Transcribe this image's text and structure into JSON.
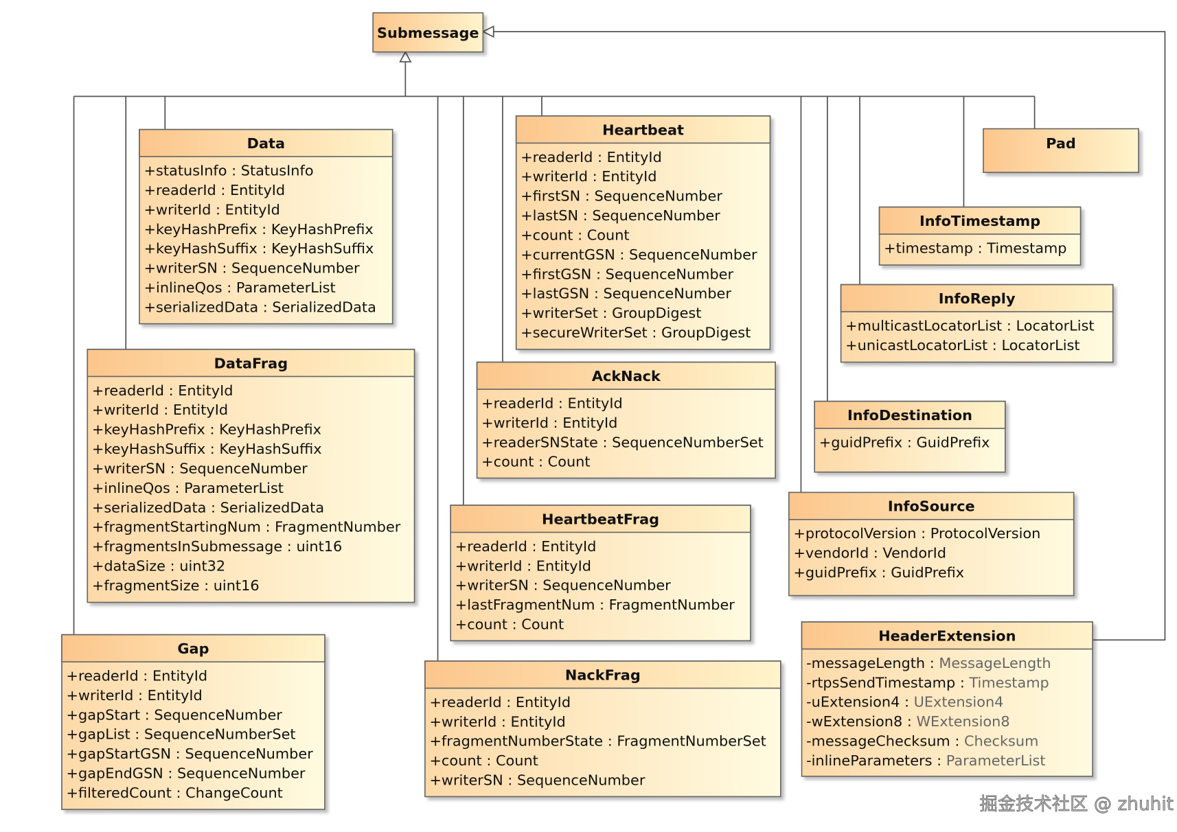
{
  "diagram_type": "uml-class-diagram",
  "colors": {
    "header_left": "#fcc68c",
    "header_right": "#fff4cc",
    "body_left": "#fdd9a8",
    "body_right": "#fffbe0",
    "border": "#666666",
    "line": "#555555"
  },
  "parent": {
    "id": "submessage",
    "name": "Submessage"
  },
  "classes": [
    {
      "id": "data",
      "name": "Data",
      "attributes": [
        {
          "v": "+",
          "n": "statusInfo",
          "t": "StatusInfo"
        },
        {
          "v": "+",
          "n": "readerId",
          "t": "EntityId"
        },
        {
          "v": "+",
          "n": "writerId",
          "t": "EntityId"
        },
        {
          "v": "+",
          "n": "keyHashPrefix",
          "t": "KeyHashPrefix"
        },
        {
          "v": "+",
          "n": "keyHashSuffix",
          "t": "KeyHashSuffix"
        },
        {
          "v": "+",
          "n": "writerSN",
          "t": "SequenceNumber"
        },
        {
          "v": "+",
          "n": "inlineQos",
          "t": "ParameterList"
        },
        {
          "v": "+",
          "n": "serializedData",
          "t": "SerializedData"
        }
      ]
    },
    {
      "id": "datafrag",
      "name": "DataFrag",
      "attributes": [
        {
          "v": "+",
          "n": "readerId",
          "t": "EntityId"
        },
        {
          "v": "+",
          "n": "writerId",
          "t": "EntityId"
        },
        {
          "v": "+",
          "n": "keyHashPrefix",
          "t": "KeyHashPrefix"
        },
        {
          "v": "+",
          "n": "keyHashSuffix",
          "t": "KeyHashSuffix"
        },
        {
          "v": "+",
          "n": "writerSN",
          "t": "SequenceNumber"
        },
        {
          "v": "+",
          "n": "inlineQos",
          "t": "ParameterList"
        },
        {
          "v": "+",
          "n": "serializedData",
          "t": "SerializedData"
        },
        {
          "v": "+",
          "n": "fragmentStartingNum",
          "t": "FragmentNumber"
        },
        {
          "v": "+",
          "n": "fragmentsInSubmessage",
          "t": "uint16"
        },
        {
          "v": "+",
          "n": "dataSize",
          "t": "uint32"
        },
        {
          "v": "+",
          "n": "fragmentSize",
          "t": "uint16"
        }
      ]
    },
    {
      "id": "gap",
      "name": "Gap",
      "attributes": [
        {
          "v": "+",
          "n": "readerId",
          "t": "EntityId"
        },
        {
          "v": "+",
          "n": "writerId",
          "t": "EntityId"
        },
        {
          "v": "+",
          "n": "gapStart",
          "t": "SequenceNumber"
        },
        {
          "v": "+",
          "n": "gapList",
          "t": "SequenceNumberSet"
        },
        {
          "v": "+",
          "n": "gapStartGSN",
          "t": "SequenceNumber"
        },
        {
          "v": "+",
          "n": "gapEndGSN",
          "t": "SequenceNumber"
        },
        {
          "v": "+",
          "n": "filteredCount",
          "t": "ChangeCount"
        }
      ]
    },
    {
      "id": "heartbeat",
      "name": "Heartbeat",
      "attributes": [
        {
          "v": "+",
          "n": "readerId",
          "t": "EntityId"
        },
        {
          "v": "+",
          "n": "writerId",
          "t": "EntityId"
        },
        {
          "v": "+",
          "n": "firstSN",
          "t": "SequenceNumber"
        },
        {
          "v": "+",
          "n": "lastSN",
          "t": "SequenceNumber"
        },
        {
          "v": "+",
          "n": "count",
          "t": "Count"
        },
        {
          "v": "+",
          "n": "currentGSN",
          "t": "SequenceNumber"
        },
        {
          "v": "+",
          "n": "firstGSN",
          "t": "SequenceNumber"
        },
        {
          "v": "+",
          "n": "lastGSN",
          "t": "SequenceNumber"
        },
        {
          "v": "+",
          "n": "writerSet",
          "t": "GroupDigest"
        },
        {
          "v": "+",
          "n": "secureWriterSet",
          "t": "GroupDigest"
        }
      ]
    },
    {
      "id": "acknack",
      "name": "AckNack",
      "attributes": [
        {
          "v": "+",
          "n": "readerId",
          "t": "EntityId"
        },
        {
          "v": "+",
          "n": "writerId",
          "t": "EntityId"
        },
        {
          "v": "+",
          "n": "readerSNState",
          "t": "SequenceNumberSet"
        },
        {
          "v": "+",
          "n": "count",
          "t": "Count"
        }
      ]
    },
    {
      "id": "heartbeatfrag",
      "name": "HeartbeatFrag",
      "attributes": [
        {
          "v": "+",
          "n": "readerId",
          "t": "EntityId"
        },
        {
          "v": "+",
          "n": "writerId",
          "t": "EntityId"
        },
        {
          "v": "+",
          "n": "writerSN",
          "t": "SequenceNumber"
        },
        {
          "v": "+",
          "n": "lastFragmentNum",
          "t": "FragmentNumber"
        },
        {
          "v": "+",
          "n": "count",
          "t": "Count"
        }
      ]
    },
    {
      "id": "nackfrag",
      "name": "NackFrag",
      "attributes": [
        {
          "v": "+",
          "n": "readerId",
          "t": "EntityId"
        },
        {
          "v": "+",
          "n": "writerId",
          "t": "EntityId"
        },
        {
          "v": "+",
          "n": "fragmentNumberState",
          "t": "FragmentNumberSet"
        },
        {
          "v": "+",
          "n": "count",
          "t": "Count"
        },
        {
          "v": "+",
          "n": "writerSN",
          "t": "SequenceNumber"
        }
      ]
    },
    {
      "id": "pad",
      "name": "Pad",
      "attributes": []
    },
    {
      "id": "infotimestamp",
      "name": "InfoTimestamp",
      "attributes": [
        {
          "v": "+",
          "n": "timestamp",
          "t": "Timestamp"
        }
      ]
    },
    {
      "id": "inforeply",
      "name": "InfoReply",
      "attributes": [
        {
          "v": "+",
          "n": "multicastLocatorList",
          "t": "LocatorList"
        },
        {
          "v": "+",
          "n": "unicastLocatorList",
          "t": "LocatorList"
        }
      ]
    },
    {
      "id": "infodestination",
      "name": "InfoDestination",
      "attributes": [
        {
          "v": "+",
          "n": "guidPrefix",
          "t": "GuidPrefix"
        }
      ]
    },
    {
      "id": "infosource",
      "name": "InfoSource",
      "attributes": [
        {
          "v": "+",
          "n": "protocolVersion",
          "t": "ProtocolVersion"
        },
        {
          "v": "+",
          "n": "vendorId",
          "t": "VendorId"
        },
        {
          "v": "+",
          "n": "guidPrefix",
          "t": "GuidPrefix"
        }
      ]
    },
    {
      "id": "headerextension",
      "name": "HeaderExtension",
      "gray_types": true,
      "attributes": [
        {
          "v": "-",
          "n": "messageLength",
          "t": "MessageLength"
        },
        {
          "v": "-",
          "n": "rtpsSendTimestamp",
          "t": "Timestamp"
        },
        {
          "v": "-",
          "n": "uExtension4",
          "t": "UExtension4"
        },
        {
          "v": "-",
          "n": "wExtension8",
          "t": "WExtension8"
        },
        {
          "v": "-",
          "n": "messageChecksum",
          "t": "Checksum"
        },
        {
          "v": "-",
          "n": "inlineParameters",
          "t": "ParameterList"
        }
      ]
    }
  ],
  "watermark": "掘金技术社区 @ zhuhit"
}
